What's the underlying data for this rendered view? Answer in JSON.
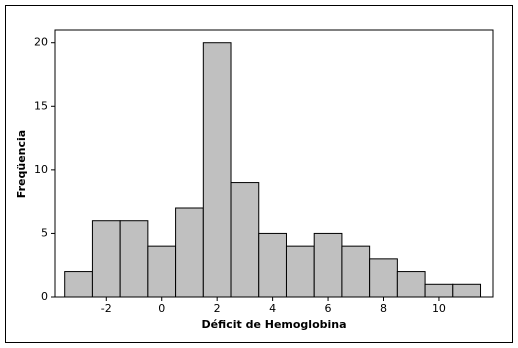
{
  "chart_data": {
    "type": "histogram",
    "x_label": "Déficit de Hemoglobina",
    "y_label": "Freqüencia",
    "bins": [
      -3.5,
      -2.5,
      -1.5,
      -0.5,
      0.5,
      1.5,
      2.5,
      3.5,
      4.5,
      5.5,
      6.5,
      7.5,
      8.5,
      9.5,
      10.5,
      11.5
    ],
    "values": [
      2,
      6,
      6,
      4,
      7,
      20,
      9,
      5,
      4,
      5,
      4,
      3,
      2,
      1,
      1
    ],
    "color": "#c0c0c0",
    "xlim": [
      -3.85,
      11.95
    ],
    "xticks": [
      -2,
      0,
      2,
      4,
      6,
      8,
      10
    ],
    "ylim": [
      0,
      21
    ],
    "yticks": [
      0,
      5,
      10,
      15,
      20
    ]
  }
}
